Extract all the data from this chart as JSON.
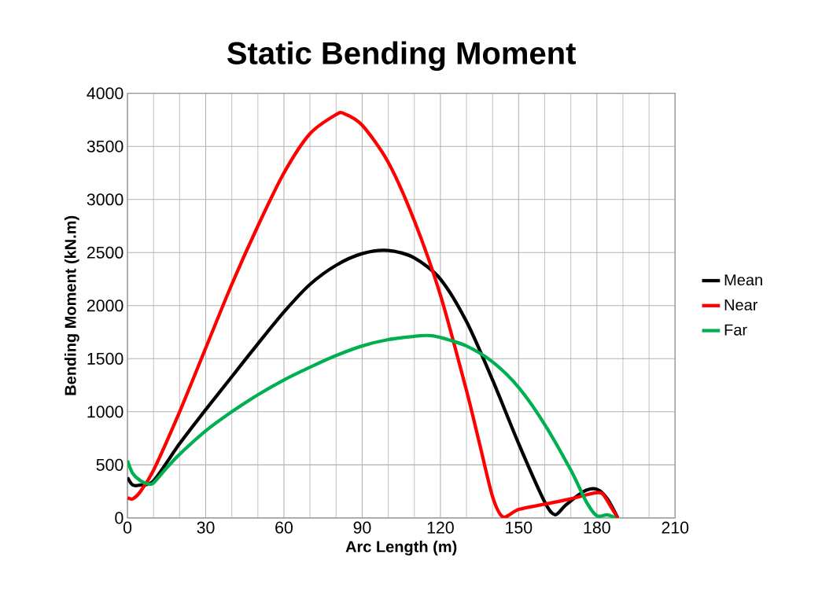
{
  "chart_data": {
    "type": "line",
    "title": "Static Bending Moment",
    "xlabel": "Arc Length (m)",
    "ylabel": "Bending Moment (kN.m)",
    "xlim": [
      0,
      210
    ],
    "xticks": [
      0,
      30,
      60,
      90,
      120,
      150,
      180,
      210
    ],
    "ylim": [
      0,
      4000
    ],
    "yticks": [
      0,
      500,
      1000,
      1500,
      2000,
      2500,
      3000,
      3500,
      4000
    ],
    "grid": true,
    "legend": "right",
    "marker": "none",
    "line_style": "solid",
    "series": [
      {
        "name": "Mean",
        "color": "#000000",
        "x": [
          0,
          2,
          5,
          10,
          20,
          30,
          40,
          50,
          60,
          70,
          80,
          90,
          100,
          110,
          120,
          130,
          140,
          150,
          160,
          164,
          168,
          175,
          180,
          184,
          188
        ],
        "values": [
          380,
          310,
          310,
          350,
          700,
          1020,
          1330,
          1640,
          1940,
          2200,
          2380,
          2490,
          2520,
          2450,
          2250,
          1850,
          1300,
          700,
          150,
          30,
          120,
          250,
          270,
          180,
          0
        ]
      },
      {
        "name": "Near",
        "color": "#ff0000",
        "x": [
          0,
          2,
          5,
          10,
          20,
          30,
          40,
          50,
          60,
          70,
          80,
          83,
          90,
          100,
          110,
          120,
          130,
          135,
          140,
          144,
          150,
          160,
          170,
          178,
          182,
          186,
          188
        ],
        "values": [
          190,
          180,
          250,
          450,
          1000,
          1600,
          2200,
          2750,
          3250,
          3620,
          3800,
          3810,
          3700,
          3350,
          2800,
          2100,
          1200,
          700,
          200,
          10,
          80,
          130,
          180,
          230,
          230,
          80,
          0
        ]
      },
      {
        "name": "Far",
        "color": "#00b050",
        "x": [
          0,
          2,
          5,
          8,
          10,
          15,
          20,
          30,
          40,
          50,
          60,
          70,
          80,
          90,
          100,
          110,
          115,
          120,
          130,
          140,
          150,
          160,
          170,
          176,
          180,
          184,
          187
        ],
        "values": [
          540,
          420,
          350,
          320,
          330,
          470,
          600,
          820,
          1000,
          1160,
          1300,
          1420,
          1530,
          1620,
          1680,
          1710,
          1720,
          1700,
          1620,
          1470,
          1230,
          880,
          450,
          150,
          20,
          30,
          0
        ]
      }
    ]
  }
}
